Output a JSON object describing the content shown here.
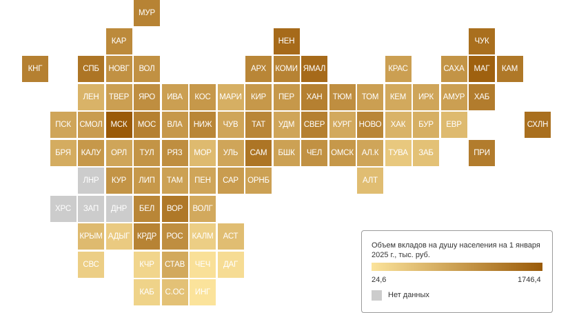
{
  "colors": {
    "scale_min": "#fbe39b",
    "scale_max": "#9a5a08",
    "no_data": "#cccccc"
  },
  "legend": {
    "title": "Объем вкладов на душу населения на 1 января 2025 г., тыс. руб.",
    "min_label": "24,6",
    "max_label": "1746,4",
    "no_data_label": "Нет данных"
  },
  "regions": [
    {
      "label": "МУР",
      "row": 0,
      "col": 4,
      "level": 0.7
    },
    {
      "label": "КАР",
      "row": 1,
      "col": 3,
      "level": 0.65
    },
    {
      "label": "НЕН",
      "row": 1,
      "col": 9,
      "level": 0.88
    },
    {
      "label": "ЧУК",
      "row": 1,
      "col": 16,
      "level": 0.85
    },
    {
      "label": "КНГ",
      "row": 2,
      "col": 0,
      "level": 0.72
    },
    {
      "label": "СПБ",
      "row": 2,
      "col": 2,
      "level": 0.8
    },
    {
      "label": "НОВГ",
      "row": 2,
      "col": 3,
      "level": 0.6
    },
    {
      "label": "ВОЛ",
      "row": 2,
      "col": 4,
      "level": 0.6
    },
    {
      "label": "АРХ",
      "row": 2,
      "col": 8,
      "level": 0.68
    },
    {
      "label": "КОМИ",
      "row": 2,
      "col": 9,
      "level": 0.7
    },
    {
      "label": "ЯМАЛ",
      "row": 2,
      "col": 10,
      "level": 0.88
    },
    {
      "label": "КРАС",
      "row": 2,
      "col": 13,
      "level": 0.5
    },
    {
      "label": "САХА",
      "row": 2,
      "col": 15,
      "level": 0.58
    },
    {
      "label": "МАГ",
      "row": 2,
      "col": 16,
      "level": 0.95
    },
    {
      "label": "КАМ",
      "row": 2,
      "col": 17,
      "level": 0.78
    },
    {
      "label": "ЛЕН",
      "row": 3,
      "col": 2,
      "level": 0.35
    },
    {
      "label": "ТВЕР",
      "row": 3,
      "col": 3,
      "level": 0.5
    },
    {
      "label": "ЯРО",
      "row": 3,
      "col": 4,
      "level": 0.62
    },
    {
      "label": "ИВА",
      "row": 3,
      "col": 5,
      "level": 0.5
    },
    {
      "label": "КОС",
      "row": 3,
      "col": 6,
      "level": 0.55
    },
    {
      "label": "МАРИ",
      "row": 3,
      "col": 7,
      "level": 0.38
    },
    {
      "label": "КИР",
      "row": 3,
      "col": 8,
      "level": 0.55
    },
    {
      "label": "ПЕР",
      "row": 3,
      "col": 9,
      "level": 0.55
    },
    {
      "label": "ХАН",
      "row": 3,
      "col": 10,
      "level": 0.72
    },
    {
      "label": "ТЮМ",
      "row": 3,
      "col": 11,
      "level": 0.62
    },
    {
      "label": "ТОМ",
      "row": 3,
      "col": 12,
      "level": 0.5
    },
    {
      "label": "КЕМ",
      "row": 3,
      "col": 13,
      "level": 0.42
    },
    {
      "label": "ИРК",
      "row": 3,
      "col": 14,
      "level": 0.45
    },
    {
      "label": "АМУР",
      "row": 3,
      "col": 15,
      "level": 0.5
    },
    {
      "label": "ХАБ",
      "row": 3,
      "col": 16,
      "level": 0.75
    },
    {
      "label": "ПСК",
      "row": 4,
      "col": 1,
      "level": 0.45
    },
    {
      "label": "СМОЛ",
      "row": 4,
      "col": 2,
      "level": 0.52
    },
    {
      "label": "МСК",
      "row": 4,
      "col": 3,
      "level": 1.0
    },
    {
      "label": "МОС",
      "row": 4,
      "col": 4,
      "level": 0.72
    },
    {
      "label": "ВЛА",
      "row": 4,
      "col": 5,
      "level": 0.55
    },
    {
      "label": "НИЖ",
      "row": 4,
      "col": 6,
      "level": 0.68
    },
    {
      "label": "ЧУВ",
      "row": 4,
      "col": 7,
      "level": 0.45
    },
    {
      "label": "ТАТ",
      "row": 4,
      "col": 8,
      "level": 0.68
    },
    {
      "label": "УДМ",
      "row": 4,
      "col": 9,
      "level": 0.45
    },
    {
      "label": "СВЕР",
      "row": 4,
      "col": 10,
      "level": 0.72
    },
    {
      "label": "КУРГ",
      "row": 4,
      "col": 11,
      "level": 0.42
    },
    {
      "label": "НОВО",
      "row": 4,
      "col": 12,
      "level": 0.68
    },
    {
      "label": "ХАК",
      "row": 4,
      "col": 13,
      "level": 0.35
    },
    {
      "label": "БУР",
      "row": 4,
      "col": 14,
      "level": 0.38
    },
    {
      "label": "ЕВР",
      "row": 4,
      "col": 15,
      "level": 0.3
    },
    {
      "label": "СХЛН",
      "row": 4,
      "col": 18,
      "level": 0.85
    },
    {
      "label": "БРЯ",
      "row": 5,
      "col": 1,
      "level": 0.4
    },
    {
      "label": "КАЛУ",
      "row": 5,
      "col": 2,
      "level": 0.55
    },
    {
      "label": "ОРЛ",
      "row": 5,
      "col": 3,
      "level": 0.45
    },
    {
      "label": "ТУЛ",
      "row": 5,
      "col": 4,
      "level": 0.58
    },
    {
      "label": "РЯЗ",
      "row": 5,
      "col": 5,
      "level": 0.62
    },
    {
      "label": "МОР",
      "row": 5,
      "col": 6,
      "level": 0.3
    },
    {
      "label": "УЛЬ",
      "row": 5,
      "col": 7,
      "level": 0.45
    },
    {
      "label": "САМ",
      "row": 5,
      "col": 8,
      "level": 0.8
    },
    {
      "label": "БШК",
      "row": 5,
      "col": 9,
      "level": 0.48
    },
    {
      "label": "ЧЕЛ",
      "row": 5,
      "col": 10,
      "level": 0.6
    },
    {
      "label": "ОМСК",
      "row": 5,
      "col": 11,
      "level": 0.55
    },
    {
      "label": "АЛ.К",
      "row": 5,
      "col": 12,
      "level": 0.45
    },
    {
      "label": "ТУВА",
      "row": 5,
      "col": 13,
      "level": 0.2
    },
    {
      "label": "ЗАБ",
      "row": 5,
      "col": 14,
      "level": 0.25
    },
    {
      "label": "ПРИ",
      "row": 5,
      "col": 16,
      "level": 0.75
    },
    {
      "label": "ЛНР",
      "row": 6,
      "col": 2,
      "level": null
    },
    {
      "label": "КУР",
      "row": 6,
      "col": 3,
      "level": 0.58
    },
    {
      "label": "ЛИП",
      "row": 6,
      "col": 4,
      "level": 0.55
    },
    {
      "label": "ТАМ",
      "row": 6,
      "col": 5,
      "level": 0.48
    },
    {
      "label": "ПЕН",
      "row": 6,
      "col": 6,
      "level": 0.45
    },
    {
      "label": "САР",
      "row": 6,
      "col": 7,
      "level": 0.52
    },
    {
      "label": "ОРНБ",
      "row": 6,
      "col": 8,
      "level": 0.48
    },
    {
      "label": "АЛТ",
      "row": 6,
      "col": 12,
      "level": 0.28
    },
    {
      "label": "ХРС",
      "row": 7,
      "col": 1,
      "level": null
    },
    {
      "label": "ЗАП",
      "row": 7,
      "col": 2,
      "level": null
    },
    {
      "label": "ДНР",
      "row": 7,
      "col": 3,
      "level": null
    },
    {
      "label": "БЕЛ",
      "row": 7,
      "col": 4,
      "level": 0.68
    },
    {
      "label": "ВОР",
      "row": 7,
      "col": 5,
      "level": 0.78
    },
    {
      "label": "ВОЛГ",
      "row": 7,
      "col": 6,
      "level": 0.42
    },
    {
      "label": "КРЫМ",
      "row": 8,
      "col": 2,
      "level": 0.3
    },
    {
      "label": "АДЫГ",
      "row": 8,
      "col": 3,
      "level": 0.18
    },
    {
      "label": "КРДР",
      "row": 8,
      "col": 4,
      "level": 0.7
    },
    {
      "label": "РОС",
      "row": 8,
      "col": 5,
      "level": 0.62
    },
    {
      "label": "КАЛМ",
      "row": 8,
      "col": 6,
      "level": 0.15
    },
    {
      "label": "АСТ",
      "row": 8,
      "col": 7,
      "level": 0.28
    },
    {
      "label": "СВС",
      "row": 9,
      "col": 2,
      "level": 0.15
    },
    {
      "label": "КЧР",
      "row": 9,
      "col": 4,
      "level": 0.1
    },
    {
      "label": "СТАВ",
      "row": 9,
      "col": 5,
      "level": 0.42
    },
    {
      "label": "ЧЕЧ",
      "row": 9,
      "col": 6,
      "level": 0.02
    },
    {
      "label": "ДАГ",
      "row": 9,
      "col": 7,
      "level": 0.05
    },
    {
      "label": "КАБ",
      "row": 10,
      "col": 4,
      "level": 0.12
    },
    {
      "label": "С.ОС",
      "row": 10,
      "col": 5,
      "level": 0.25
    },
    {
      "label": "ИНГ",
      "row": 10,
      "col": 6,
      "level": 0.0
    }
  ]
}
